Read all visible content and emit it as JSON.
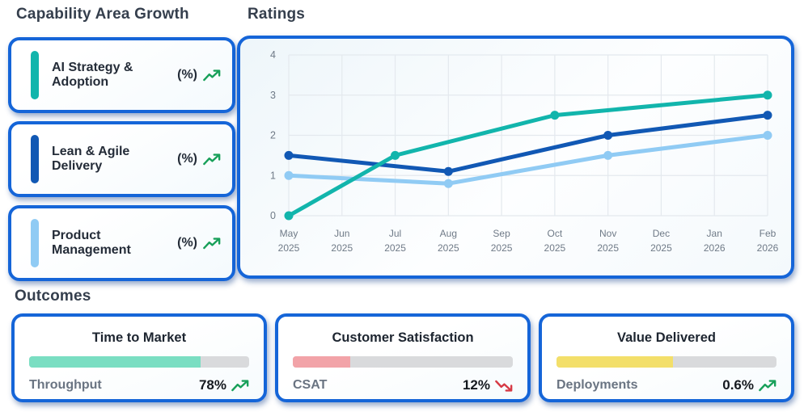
{
  "header": {
    "capability_title": "Capability Area Growth",
    "ratings_title": "Ratings",
    "outcomes_title": "Outcomes"
  },
  "colors": {
    "card_border": "#1565d8",
    "trend_up": "#18a05a",
    "trend_down": "#d63a45"
  },
  "capability_cards": [
    {
      "label": "AI Strategy & Adoption",
      "unit": "(%)",
      "trend": "up",
      "accent_color": "#12b5ac"
    },
    {
      "label": "Lean & Agile Delivery",
      "unit": "(%)",
      "trend": "up",
      "accent_color": "#1158b4"
    },
    {
      "label": "Product Management",
      "unit": "(%)",
      "trend": "up",
      "accent_color": "#90cbf4"
    }
  ],
  "chart_data": {
    "type": "line",
    "title": "Ratings",
    "categories": [
      "May 2025",
      "Jun 2025",
      "Jul 2025",
      "Aug 2025",
      "Sep 2025",
      "Oct 2025",
      "Nov 2025",
      "Dec 2025",
      "Jan 2026",
      "Feb 2026"
    ],
    "x_labels": [
      [
        "May",
        "2025"
      ],
      [
        "Jun",
        "2025"
      ],
      [
        "Jul",
        "2025"
      ],
      [
        "Aug",
        "2025"
      ],
      [
        "Sep",
        "2025"
      ],
      [
        "Oct",
        "2025"
      ],
      [
        "Nov",
        "2025"
      ],
      [
        "Dec",
        "2025"
      ],
      [
        "Jan",
        "2026"
      ],
      [
        "Feb",
        "2026"
      ]
    ],
    "ylim": [
      0,
      4
    ],
    "yticks": [
      0,
      1,
      2,
      3,
      4
    ],
    "grid": true,
    "legend": "none",
    "grid_color": "#e4e9ee",
    "axis_text_color": "#6f7a87",
    "series": [
      {
        "name": "AI Strategy & Adoption",
        "color": "#12b5ac",
        "points": [
          [
            0,
            0
          ],
          [
            2,
            1.5
          ],
          [
            5,
            2.5
          ],
          [
            9,
            3.0
          ]
        ]
      },
      {
        "name": "Lean & Agile Delivery",
        "color": "#1158b4",
        "points": [
          [
            0,
            1.5
          ],
          [
            3,
            1.1
          ],
          [
            6,
            2.0
          ],
          [
            9,
            2.5
          ]
        ]
      },
      {
        "name": "Product Management",
        "color": "#90cbf4",
        "points": [
          [
            0,
            1.0
          ],
          [
            3,
            0.8
          ],
          [
            6,
            1.5
          ],
          [
            9,
            2.0
          ]
        ]
      }
    ]
  },
  "outcomes": [
    {
      "title": "Time to Market",
      "metric": "Throughput",
      "value": "78%",
      "trend": "up",
      "bar_color": "#7adec2",
      "bar_fill": "78%"
    },
    {
      "title": "Customer Satisfaction",
      "metric": "CSAT",
      "value": "12%",
      "trend": "down",
      "bar_color": "#f2a3a8",
      "bar_fill": "26%"
    },
    {
      "title": "Value Delivered",
      "metric": "Deployments",
      "value": "0.6%",
      "trend": "up",
      "bar_color": "#f3df6a",
      "bar_fill": "53%"
    }
  ]
}
